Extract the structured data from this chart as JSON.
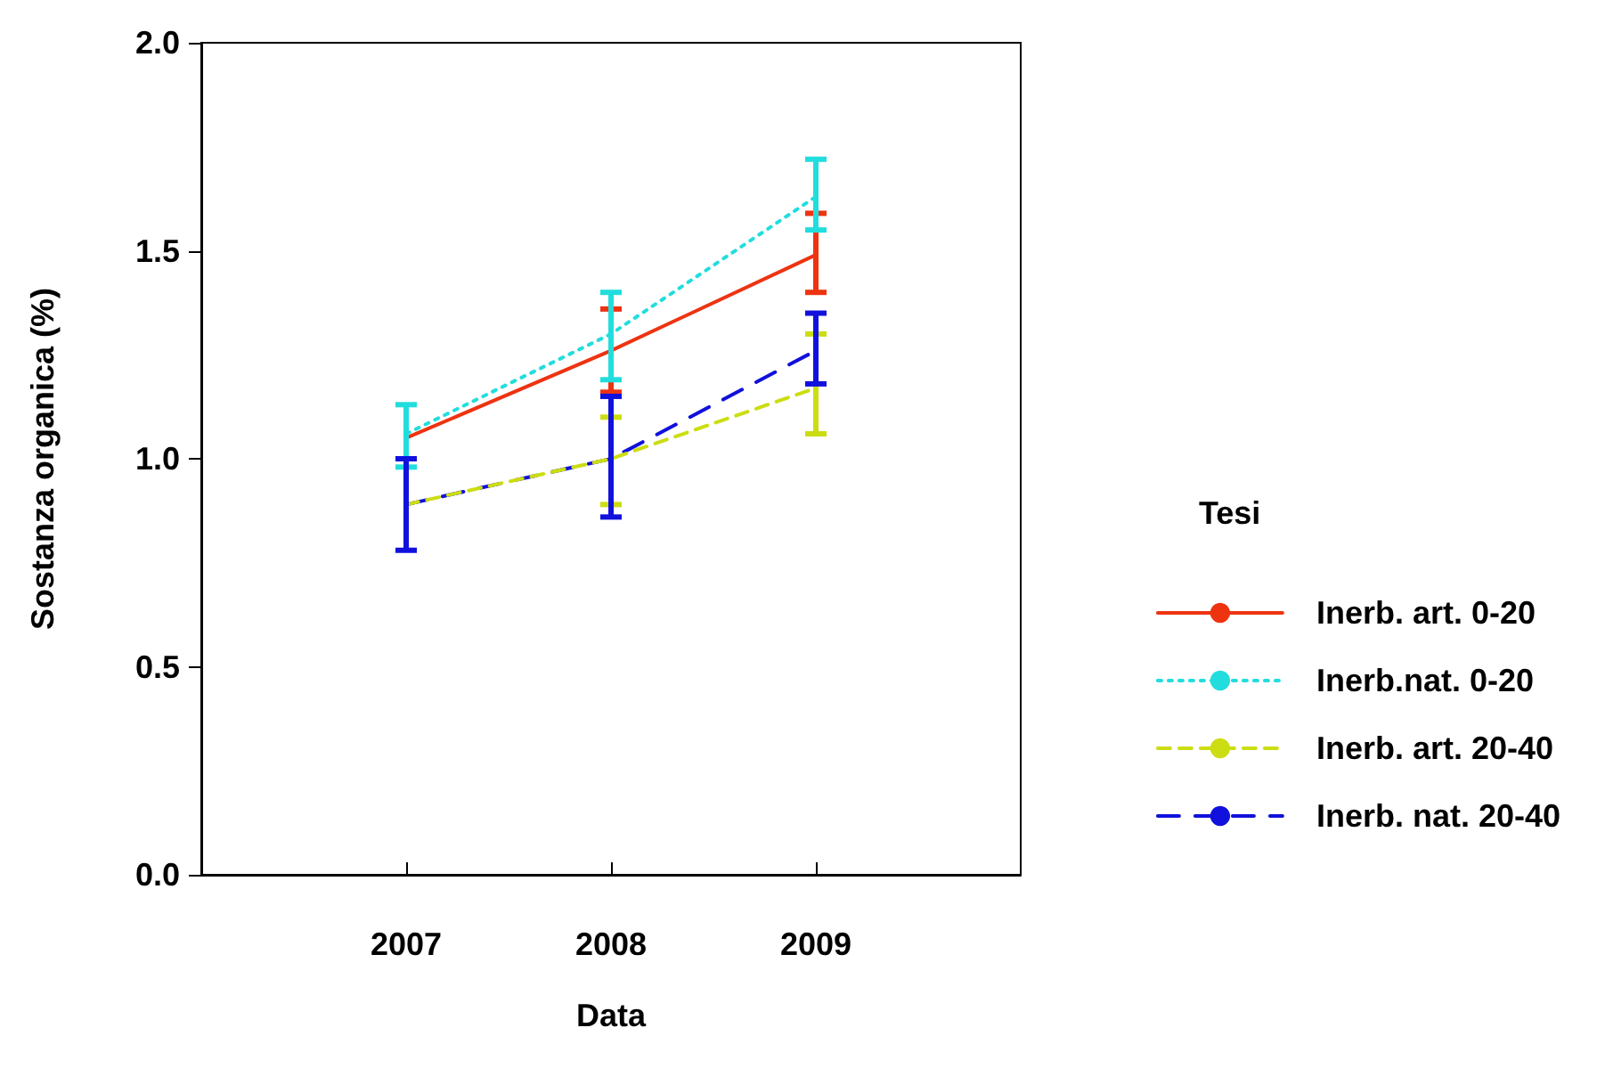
{
  "chart_data": {
    "type": "line",
    "xlabel": "Data",
    "ylabel": "Sostanza organica (%)",
    "legend_title": "Tesi",
    "x": [
      2007,
      2008,
      2009
    ],
    "xlim": [
      2006,
      2010
    ],
    "xticks": [
      2007,
      2008,
      2009
    ],
    "ylim": [
      0,
      2
    ],
    "yticks": [
      {
        "value": 0,
        "label": "0.0"
      },
      {
        "value": 0.5,
        "label": "0.5"
      },
      {
        "value": 1,
        "label": "1.0"
      },
      {
        "value": 1.5,
        "label": "1.5"
      },
      {
        "value": 2,
        "label": "2.0"
      }
    ],
    "grid": false,
    "legend": "right",
    "marker": "none",
    "series": [
      {
        "name": "Inerb. art. 0-20",
        "color": "#ee3311",
        "line_style": "solid",
        "values": [
          1.05,
          1.26,
          1.49
        ],
        "errors": [
          null,
          [
            1.16,
            1.36
          ],
          [
            1.4,
            1.59
          ]
        ]
      },
      {
        "name": "Inerb.nat. 0-20",
        "color": "#22dddd",
        "line_style": "dotted",
        "values": [
          1.06,
          1.3,
          1.63
        ],
        "errors": [
          [
            0.98,
            1.13
          ],
          [
            1.19,
            1.4
          ],
          [
            1.55,
            1.72
          ]
        ]
      },
      {
        "name": "Inerb. art. 20-40",
        "color": "#ccdd11",
        "line_style": "dashed",
        "values": [
          0.89,
          1.0,
          1.17
        ],
        "errors": [
          null,
          [
            0.89,
            1.1
          ],
          [
            1.06,
            1.3
          ]
        ]
      },
      {
        "name": "Inerb. nat. 20-40",
        "color": "#1111dd",
        "line_style": "dashed",
        "values": [
          0.89,
          1.0,
          1.26
        ],
        "errors": [
          [
            0.78,
            1.0
          ],
          [
            0.86,
            1.15
          ],
          [
            1.18,
            1.35
          ]
        ]
      }
    ]
  }
}
